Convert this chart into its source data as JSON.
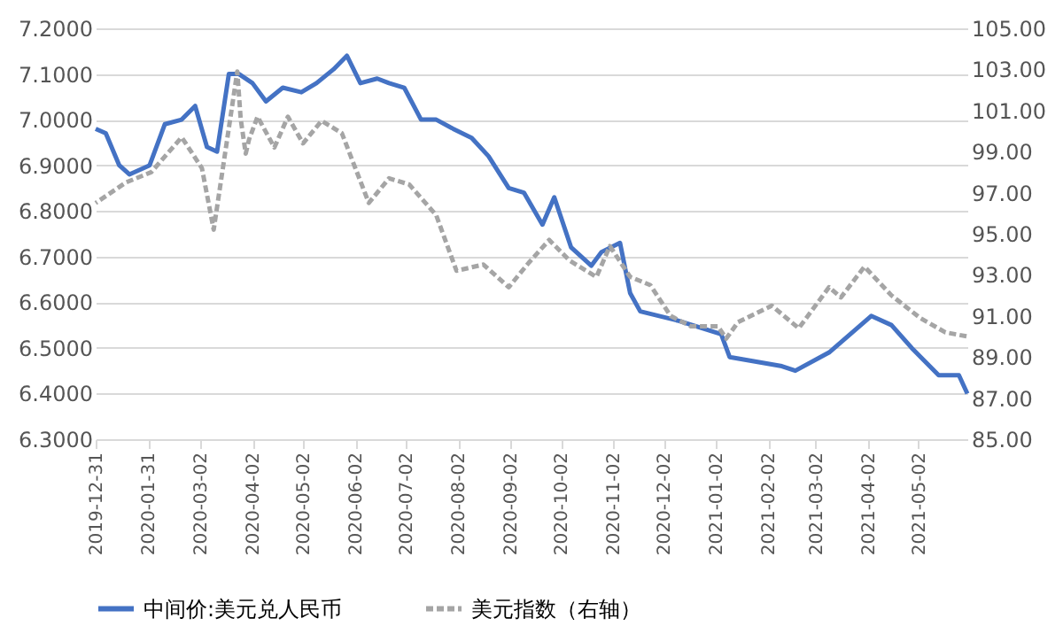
{
  "chart_data": {
    "type": "line",
    "xlim": [
      "2019-12-31",
      "2021-05-31"
    ],
    "xticks": [
      {
        "value": "2019-12-31",
        "label": "2019-12-31"
      },
      {
        "value": "2020-01-31",
        "label": "2020-01-31"
      },
      {
        "value": "2020-03-02",
        "label": "2020-03-02"
      },
      {
        "value": "2020-04-02",
        "label": "2020-04-02"
      },
      {
        "value": "2020-05-02",
        "label": "2020-05-02"
      },
      {
        "value": "2020-06-02",
        "label": "2020-06-02"
      },
      {
        "value": "2020-07-02",
        "label": "2020-07-02"
      },
      {
        "value": "2020-08-02",
        "label": "2020-08-02"
      },
      {
        "value": "2020-09-02",
        "label": "2020-09-02"
      },
      {
        "value": "2020-10-02",
        "label": "2020-10-02"
      },
      {
        "value": "2020-11-02",
        "label": "2020-11-02"
      },
      {
        "value": "2020-12-02",
        "label": "2020-12-02"
      },
      {
        "value": "2021-01-02",
        "label": "2021-01-02"
      },
      {
        "value": "2021-02-02",
        "label": "2021-02-02"
      },
      {
        "value": "2021-03-02",
        "label": "2021-03-02"
      },
      {
        "value": "2021-04-02",
        "label": "2021-04-02"
      },
      {
        "value": "2021-05-02",
        "label": "2021-05-02"
      }
    ],
    "ylim": [
      6.3,
      7.2
    ],
    "yticks": [
      {
        "value": 6.3,
        "label": "6.3000"
      },
      {
        "value": 6.4,
        "label": "6.4000"
      },
      {
        "value": 6.5,
        "label": "6.5000"
      },
      {
        "value": 6.6,
        "label": "6.6000"
      },
      {
        "value": 6.7,
        "label": "6.7000"
      },
      {
        "value": 6.8,
        "label": "6.8000"
      },
      {
        "value": 6.9,
        "label": "6.9000"
      },
      {
        "value": 7.0,
        "label": "7.0000"
      },
      {
        "value": 7.1,
        "label": "7.1000"
      },
      {
        "value": 7.2,
        "label": "7.2000"
      }
    ],
    "y2lim": [
      85,
      105
    ],
    "y2ticks": [
      {
        "value": 85,
        "label": "85.00"
      },
      {
        "value": 87,
        "label": "87.00"
      },
      {
        "value": 89,
        "label": "89.00"
      },
      {
        "value": 91,
        "label": "91.00"
      },
      {
        "value": 93,
        "label": "93.00"
      },
      {
        "value": 95,
        "label": "95.00"
      },
      {
        "value": 97,
        "label": "97.00"
      },
      {
        "value": 99,
        "label": "99.00"
      },
      {
        "value": 101,
        "label": "101.00"
      },
      {
        "value": 103,
        "label": "103.00"
      },
      {
        "value": 105,
        "label": "105.00"
      }
    ],
    "grid": "y",
    "legend": "bottom",
    "marker": "none",
    "series": [
      {
        "name": "中间价:美元兑人民币",
        "color": "#4472c4",
        "line_style": "solid",
        "x": [
          "2019-12-31",
          "2020-01-06",
          "2020-01-14",
          "2020-01-20",
          "2020-02-01",
          "2020-02-10",
          "2020-02-20",
          "2020-02-28",
          "2020-03-06",
          "2020-03-12",
          "2020-03-19",
          "2020-03-25",
          "2020-04-02",
          "2020-04-10",
          "2020-04-20",
          "2020-05-01",
          "2020-05-10",
          "2020-05-20",
          "2020-05-28",
          "2020-06-05",
          "2020-06-15",
          "2020-06-22",
          "2020-07-01",
          "2020-07-11",
          "2020-07-20",
          "2020-07-30",
          "2020-08-10",
          "2020-08-20",
          "2020-09-01",
          "2020-09-10",
          "2020-09-21",
          "2020-09-28",
          "2020-10-08",
          "2020-10-20",
          "2020-10-26",
          "2020-11-06",
          "2020-11-12",
          "2020-11-18",
          "2020-12-10",
          "2021-01-05",
          "2021-01-10",
          "2021-02-10",
          "2021-02-18",
          "2021-03-10",
          "2021-04-04",
          "2021-04-16",
          "2021-04-28",
          "2021-05-14",
          "2021-05-26",
          "2021-05-31"
        ],
        "values": [
          6.98,
          6.97,
          6.9,
          6.88,
          6.9,
          6.99,
          7.0,
          7.03,
          6.94,
          6.93,
          7.1,
          7.1,
          7.08,
          7.04,
          7.07,
          7.06,
          7.08,
          7.11,
          7.14,
          7.08,
          7.09,
          7.08,
          7.07,
          7.0,
          7.0,
          6.98,
          6.96,
          6.92,
          6.85,
          6.84,
          6.77,
          6.83,
          6.72,
          6.68,
          6.71,
          6.73,
          6.62,
          6.58,
          6.56,
          6.53,
          6.48,
          6.46,
          6.45,
          6.49,
          6.57,
          6.55,
          6.5,
          6.44,
          6.44,
          6.4
        ]
      },
      {
        "name": "美元指数（右轴）",
        "color": "#a5a5a5",
        "line_style": "dashed",
        "axis": "y2",
        "x": [
          "2019-12-31",
          "2020-01-18",
          "2020-02-02",
          "2020-02-20",
          "2020-03-03",
          "2020-03-10",
          "2020-03-16",
          "2020-03-24",
          "2020-03-26",
          "2020-03-29",
          "2020-03-31",
          "2020-04-05",
          "2020-04-15",
          "2020-04-23",
          "2020-05-02",
          "2020-05-13",
          "2020-05-25",
          "2020-06-10",
          "2020-06-22",
          "2020-07-04",
          "2020-07-20",
          "2020-08-01",
          "2020-08-17",
          "2020-09-01",
          "2020-09-13",
          "2020-09-25",
          "2020-10-07",
          "2020-10-23",
          "2020-10-31",
          "2020-11-12",
          "2020-11-24",
          "2020-12-06",
          "2020-12-18",
          "2021-01-03",
          "2021-01-08",
          "2021-01-15",
          "2021-02-04",
          "2021-02-20",
          "2021-03-10",
          "2021-03-17",
          "2021-03-31",
          "2021-04-16",
          "2021-05-03",
          "2021-05-18",
          "2021-05-31"
        ],
        "values": [
          96.5,
          97.5,
          98.0,
          99.7,
          98.2,
          95.2,
          98.5,
          102.9,
          100.6,
          98.9,
          99.6,
          100.7,
          99.2,
          100.7,
          99.4,
          100.5,
          99.9,
          96.5,
          97.7,
          97.4,
          95.9,
          93.2,
          93.5,
          92.4,
          93.6,
          94.7,
          93.7,
          92.9,
          94.4,
          92.9,
          92.5,
          91.0,
          90.5,
          90.5,
          89.9,
          90.7,
          91.5,
          90.4,
          92.4,
          91.9,
          93.4,
          92.0,
          90.9,
          90.2,
          90.0
        ]
      }
    ]
  }
}
